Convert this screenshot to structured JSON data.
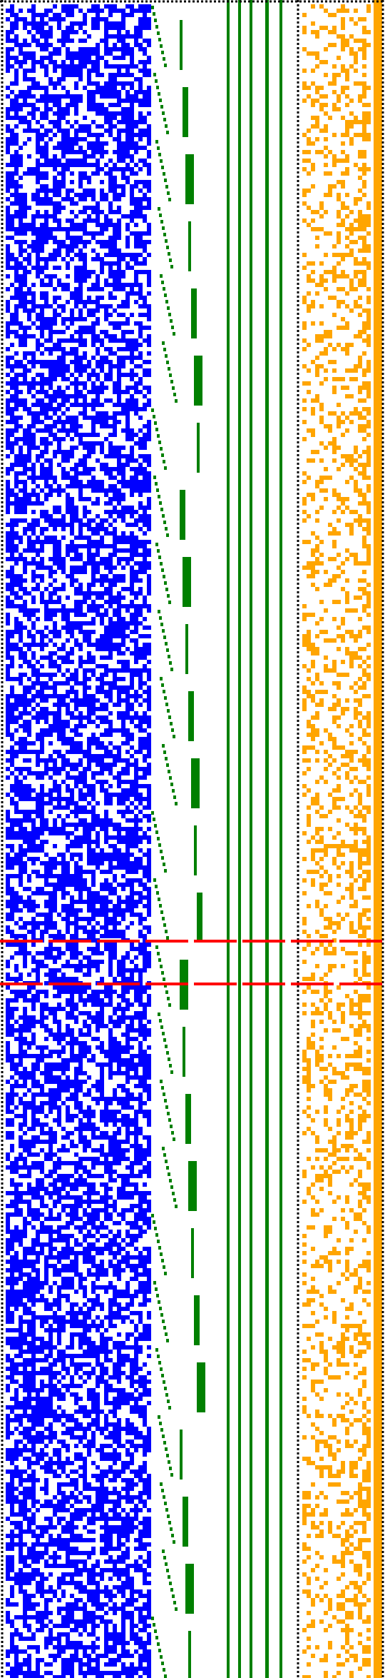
{
  "colors": {
    "background": "#ffffff",
    "cells_left": "#0000ff",
    "staircase": "#008000",
    "cells_right": "#ffa500",
    "dotted_border": "#000000",
    "marker_lines": "#ff0000"
  },
  "panels": [
    {
      "name": "blue-cell-grid",
      "pattern": "random-cells",
      "color_key": "cells_left"
    },
    {
      "name": "green-staircase-bands",
      "pattern": "staircase",
      "color_key": "staircase"
    },
    {
      "name": "green-vertical-lines",
      "pattern": "vertical-lines",
      "color_key": "staircase"
    },
    {
      "name": "orange-cell-grid",
      "pattern": "random-cells",
      "color_key": "cells_right"
    }
  ],
  "markers": [
    {
      "name": "red-dashed-line-upper",
      "style": "dashed",
      "color_key": "marker_lines"
    },
    {
      "name": "red-dashed-line-lower",
      "style": "dashed",
      "color_key": "marker_lines"
    }
  ],
  "borders": [
    {
      "name": "dotted-top-border",
      "style": "dotted",
      "color_key": "dotted_border"
    },
    {
      "name": "dotted-left-border",
      "style": "dotted",
      "color_key": "dotted_border"
    },
    {
      "name": "dotted-right-border",
      "style": "dotted",
      "color_key": "dotted_border"
    },
    {
      "name": "dotted-separator",
      "style": "dotted",
      "color_key": "dotted_border"
    }
  ]
}
